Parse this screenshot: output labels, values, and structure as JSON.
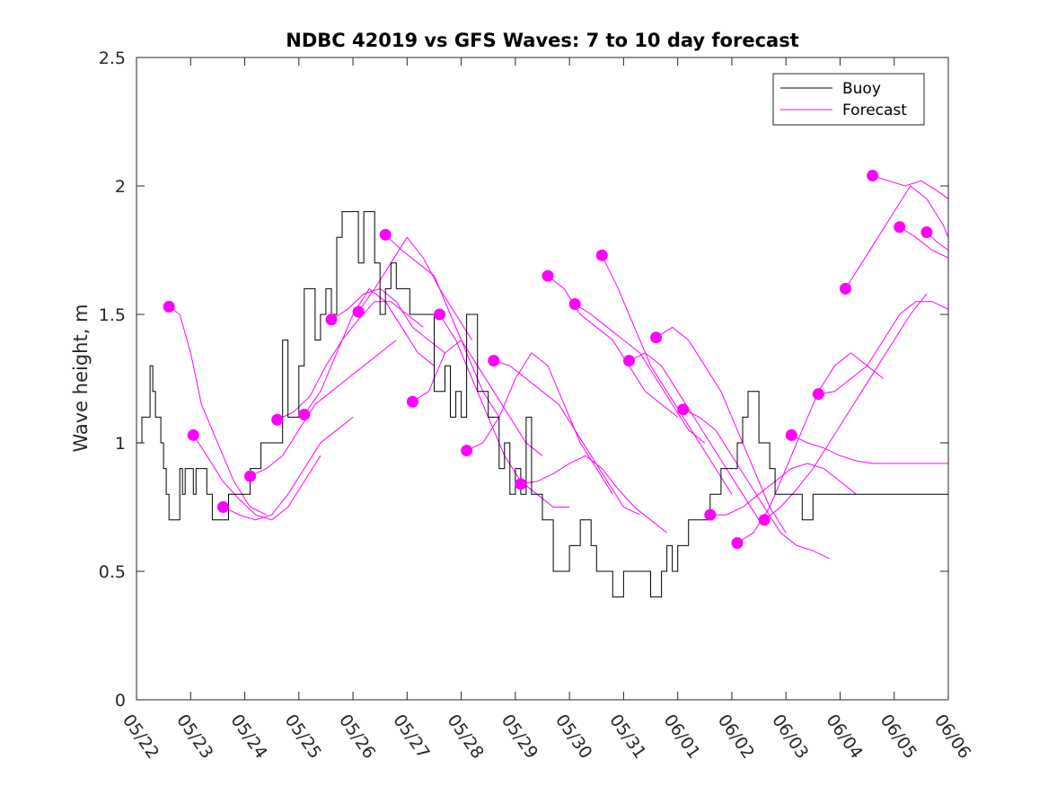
{
  "chart_data": {
    "type": "line",
    "title": "NDBC 42019 vs GFS Waves: 7 to 10 day forecast",
    "xlabel": "",
    "ylabel": "Wave height, m",
    "x_tick_labels": [
      "05/22",
      "05/23",
      "05/24",
      "05/25",
      "05/26",
      "05/27",
      "05/28",
      "05/29",
      "05/30",
      "05/31",
      "06/01",
      "06/02",
      "06/03",
      "06/04",
      "06/05",
      "06/06"
    ],
    "xlim": [
      0,
      15
    ],
    "ylim": [
      0,
      2.5
    ],
    "y_ticks": [
      0,
      0.5,
      1,
      1.5,
      2,
      2.5
    ],
    "y_tick_labels": [
      "0",
      "0.5",
      "1",
      "1.5",
      "2",
      "2.5"
    ],
    "legend": {
      "placement": "top-right",
      "entries": [
        "Buoy",
        "Forecast"
      ]
    },
    "colors": {
      "buoy": "#000000",
      "forecast": "#ff00ff"
    },
    "buoy": {
      "name": "Buoy",
      "x": [
        0,
        0.1,
        0.15,
        0.25,
        0.3,
        0.35,
        0.45,
        0.5,
        0.55,
        0.6,
        0.8,
        0.85,
        0.9,
        1.0,
        1.05,
        1.1,
        1.3,
        1.4,
        1.5,
        1.7,
        1.9,
        2.0,
        2.1,
        2.2,
        2.3,
        2.5,
        2.7,
        2.8,
        3.0,
        3.1,
        3.3,
        3.4,
        3.5,
        3.6,
        3.7,
        3.8,
        3.9,
        4.1,
        4.2,
        4.4,
        4.5,
        4.6,
        4.7,
        4.8,
        5.0,
        5.05,
        5.2,
        5.3,
        5.4,
        5.5,
        5.7,
        5.8,
        5.9,
        6.0,
        6.1,
        6.3,
        6.4,
        6.5,
        6.7,
        6.8,
        6.9,
        7.0,
        7.1,
        7.2,
        7.3,
        7.5,
        7.7,
        7.8,
        8.0,
        8.2,
        8.4,
        8.5,
        8.6,
        8.8,
        9.0,
        9.2,
        9.4,
        9.5,
        9.7,
        9.8,
        9.9,
        10.0,
        10.2,
        10.4,
        10.6,
        10.8,
        11.0,
        11.1,
        11.2,
        11.3,
        11.5,
        11.7,
        11.8,
        11.9,
        12.1,
        12.3,
        12.5,
        12.8,
        13.0,
        13.1,
        13.3,
        13.5,
        13.7,
        13.8,
        14.0,
        14.2,
        14.4,
        14.5,
        14.6,
        14.7,
        14.8,
        14.9,
        15.0
      ],
      "y": [
        1.0,
        1.1,
        1.1,
        1.3,
        1.2,
        1.1,
        1.0,
        0.9,
        0.8,
        0.7,
        0.9,
        0.8,
        0.9,
        0.9,
        0.8,
        0.9,
        0.8,
        0.7,
        0.7,
        0.8,
        0.8,
        0.8,
        0.9,
        0.9,
        1.0,
        1.0,
        1.4,
        1.1,
        1.3,
        1.6,
        1.4,
        1.5,
        1.6,
        1.5,
        1.8,
        1.9,
        1.9,
        1.7,
        1.9,
        1.7,
        1.5,
        1.6,
        1.7,
        1.6,
        1.6,
        1.5,
        1.5,
        1.5,
        1.5,
        1.2,
        1.3,
        1.1,
        1.2,
        1.1,
        1.5,
        1.2,
        1.2,
        1.1,
        0.9,
        1.0,
        0.8,
        0.9,
        0.8,
        1.1,
        0.8,
        0.7,
        0.5,
        0.5,
        0.6,
        0.7,
        0.6,
        0.5,
        0.5,
        0.4,
        0.5,
        0.5,
        0.5,
        0.4,
        0.5,
        0.6,
        0.5,
        0.6,
        0.7,
        0.7,
        0.8,
        0.9,
        0.9,
        1.0,
        1.1,
        1.2,
        1.0,
        0.9,
        0.8,
        0.8,
        0.8,
        0.7,
        0.8,
        0.8,
        0.8,
        0.8,
        0.8,
        0.8,
        0.8,
        0.8,
        0.8,
        0.8,
        0.8,
        0.8,
        0.8,
        0.8,
        0.8,
        0.8,
        0.8
      ]
    },
    "forecast_series": [
      {
        "x": [
          0.6,
          0.8,
          1.0,
          1.2,
          1.5,
          1.8,
          2.1,
          2.4
        ],
        "y": [
          1.53,
          1.5,
          1.35,
          1.15,
          1.0,
          0.85,
          0.75,
          0.72
        ]
      },
      {
        "x": [
          1.05,
          1.3,
          1.6,
          1.9,
          2.2,
          2.5,
          2.8,
          3.1,
          3.4
        ],
        "y": [
          1.03,
          0.95,
          0.85,
          0.78,
          0.72,
          0.7,
          0.75,
          0.85,
          0.95
        ]
      },
      {
        "x": [
          1.6,
          1.9,
          2.2,
          2.5,
          2.8,
          3.1,
          3.4,
          3.7,
          4.0
        ],
        "y": [
          0.75,
          0.72,
          0.7,
          0.72,
          0.8,
          0.9,
          1.0,
          1.05,
          1.1
        ]
      },
      {
        "x": [
          2.1,
          2.4,
          2.7,
          3.0,
          3.3,
          3.6,
          3.9,
          4.2,
          4.5,
          4.8
        ],
        "y": [
          0.87,
          0.9,
          0.95,
          1.05,
          1.15,
          1.2,
          1.25,
          1.3,
          1.35,
          1.4
        ]
      },
      {
        "x": [
          2.6,
          2.9,
          3.2,
          3.5,
          3.8,
          4.1,
          4.4,
          4.7,
          5.0,
          5.3
        ],
        "y": [
          1.09,
          1.12,
          1.18,
          1.3,
          1.4,
          1.48,
          1.55,
          1.55,
          1.5,
          1.45
        ]
      },
      {
        "x": [
          3.1,
          3.4,
          3.7,
          4.0,
          4.3,
          4.6,
          4.9,
          5.2,
          5.5
        ],
        "y": [
          1.11,
          1.2,
          1.35,
          1.5,
          1.6,
          1.55,
          1.45,
          1.35,
          1.3
        ]
      },
      {
        "x": [
          3.6,
          3.9,
          4.2,
          4.5,
          4.8,
          5.1,
          5.4,
          5.7
        ],
        "y": [
          1.48,
          1.52,
          1.58,
          1.6,
          1.55,
          1.45,
          1.4,
          1.35
        ]
      },
      {
        "x": [
          4.1,
          4.4,
          4.7,
          5.0,
          5.3,
          5.6,
          5.9,
          6.2
        ],
        "y": [
          1.51,
          1.6,
          1.7,
          1.8,
          1.72,
          1.6,
          1.5,
          1.4
        ]
      },
      {
        "x": [
          4.6,
          4.9,
          5.2,
          5.5,
          5.8,
          6.1,
          6.4,
          6.7
        ],
        "y": [
          1.81,
          1.75,
          1.7,
          1.65,
          1.5,
          1.35,
          1.2,
          1.1
        ]
      },
      {
        "x": [
          5.1,
          5.4,
          5.7,
          6.0,
          6.3,
          6.6,
          6.9,
          7.2,
          7.5
        ],
        "y": [
          1.16,
          1.2,
          1.35,
          1.4,
          1.3,
          1.2,
          1.1,
          1.0,
          0.95
        ]
      },
      {
        "x": [
          5.6,
          5.9,
          6.2,
          6.5,
          6.8,
          7.1,
          7.4,
          7.7,
          8.0
        ],
        "y": [
          1.5,
          1.4,
          1.25,
          1.1,
          0.95,
          0.85,
          0.8,
          0.75,
          0.75
        ]
      },
      {
        "x": [
          6.1,
          6.4,
          6.7,
          7.0,
          7.3,
          7.6,
          7.9,
          8.2,
          8.5,
          8.8
        ],
        "y": [
          0.97,
          1.0,
          1.1,
          1.25,
          1.35,
          1.3,
          1.15,
          1.0,
          0.9,
          0.8
        ]
      },
      {
        "x": [
          6.6,
          6.9,
          7.2,
          7.5,
          7.8,
          8.1,
          8.4,
          8.7,
          9.0,
          9.3
        ],
        "y": [
          1.32,
          1.3,
          1.25,
          1.2,
          1.15,
          1.05,
          0.95,
          0.85,
          0.75,
          0.72
        ]
      },
      {
        "x": [
          7.1,
          7.4,
          7.7,
          8.0,
          8.3,
          8.6,
          8.9,
          9.2,
          9.5,
          9.8
        ],
        "y": [
          0.84,
          0.85,
          0.88,
          0.92,
          0.95,
          0.9,
          0.82,
          0.75,
          0.7,
          0.65
        ]
      },
      {
        "x": [
          7.6,
          7.9,
          8.2,
          8.5,
          8.8,
          9.1,
          9.4,
          9.7,
          10.0
        ],
        "y": [
          1.65,
          1.6,
          1.5,
          1.45,
          1.4,
          1.3,
          1.2,
          1.15,
          1.1
        ]
      },
      {
        "x": [
          8.1,
          8.4,
          8.7,
          9.0,
          9.3,
          9.6,
          9.9,
          10.2,
          10.5
        ],
        "y": [
          1.54,
          1.5,
          1.45,
          1.4,
          1.35,
          1.25,
          1.15,
          1.05,
          1.0
        ]
      },
      {
        "x": [
          8.6,
          8.9,
          9.2,
          9.5,
          9.8,
          10.1,
          10.4,
          10.7,
          11.0
        ],
        "y": [
          1.73,
          1.6,
          1.45,
          1.3,
          1.2,
          1.1,
          1.0,
          0.9,
          0.8
        ]
      },
      {
        "x": [
          9.1,
          9.4,
          9.7,
          10.0,
          10.3,
          10.6,
          10.9,
          11.2,
          11.5
        ],
        "y": [
          1.32,
          1.35,
          1.3,
          1.2,
          1.1,
          1.0,
          0.9,
          0.8,
          0.7
        ]
      },
      {
        "x": [
          9.6,
          9.9,
          10.2,
          10.5,
          10.8,
          11.1,
          11.4,
          11.7,
          12.0
        ],
        "y": [
          1.41,
          1.45,
          1.4,
          1.3,
          1.2,
          1.05,
          0.9,
          0.75,
          0.65
        ]
      },
      {
        "x": [
          10.1,
          10.4,
          10.7,
          11.0,
          11.3,
          11.6,
          11.9,
          12.2,
          12.5,
          12.8
        ],
        "y": [
          1.13,
          1.1,
          1.05,
          0.95,
          0.85,
          0.75,
          0.65,
          0.6,
          0.58,
          0.55
        ]
      },
      {
        "x": [
          10.6,
          10.9,
          11.2,
          11.5,
          11.8,
          12.1,
          12.4,
          12.7,
          13.0,
          13.3
        ],
        "y": [
          0.72,
          0.72,
          0.75,
          0.8,
          0.85,
          0.9,
          0.92,
          0.9,
          0.85,
          0.8
        ]
      },
      {
        "x": [
          11.1,
          11.4,
          11.7,
          12.0,
          12.3,
          12.6,
          12.9,
          13.2,
          13.5,
          13.8
        ],
        "y": [
          0.61,
          0.65,
          0.75,
          0.9,
          1.05,
          1.2,
          1.3,
          1.35,
          1.3,
          1.25
        ]
      },
      {
        "x": [
          11.6,
          11.9,
          12.2,
          12.5,
          12.8,
          13.1,
          13.4,
          13.7,
          14.0,
          14.3,
          14.6
        ],
        "y": [
          0.7,
          0.75,
          0.82,
          0.9,
          1.0,
          1.1,
          1.2,
          1.3,
          1.4,
          1.5,
          1.58
        ]
      },
      {
        "x": [
          12.1,
          12.4,
          12.7,
          13.0,
          13.3,
          13.6,
          13.9,
          14.2,
          14.5,
          14.8,
          15.0
        ],
        "y": [
          1.03,
          1.0,
          0.98,
          0.95,
          0.93,
          0.92,
          0.92,
          0.92,
          0.92,
          0.92,
          0.92
        ]
      },
      {
        "x": [
          12.6,
          12.9,
          13.2,
          13.5,
          13.8,
          14.1,
          14.4,
          14.7,
          15.0
        ],
        "y": [
          1.19,
          1.2,
          1.25,
          1.3,
          1.4,
          1.5,
          1.55,
          1.55,
          1.52
        ]
      },
      {
        "x": [
          13.1,
          13.4,
          13.7,
          14.0,
          14.3,
          14.6,
          14.9,
          15.0
        ],
        "y": [
          1.6,
          1.7,
          1.8,
          1.9,
          2.0,
          1.95,
          1.85,
          1.8
        ]
      },
      {
        "x": [
          13.6,
          13.9,
          14.2,
          14.5,
          14.8,
          15.0
        ],
        "y": [
          2.04,
          2.02,
          2.0,
          2.02,
          1.98,
          1.95
        ]
      },
      {
        "x": [
          14.1,
          14.4,
          14.7,
          15.0
        ],
        "y": [
          1.84,
          1.8,
          1.75,
          1.72
        ]
      },
      {
        "x": [
          14.6,
          14.8,
          15.0
        ],
        "y": [
          1.82,
          1.78,
          1.75
        ]
      }
    ]
  }
}
